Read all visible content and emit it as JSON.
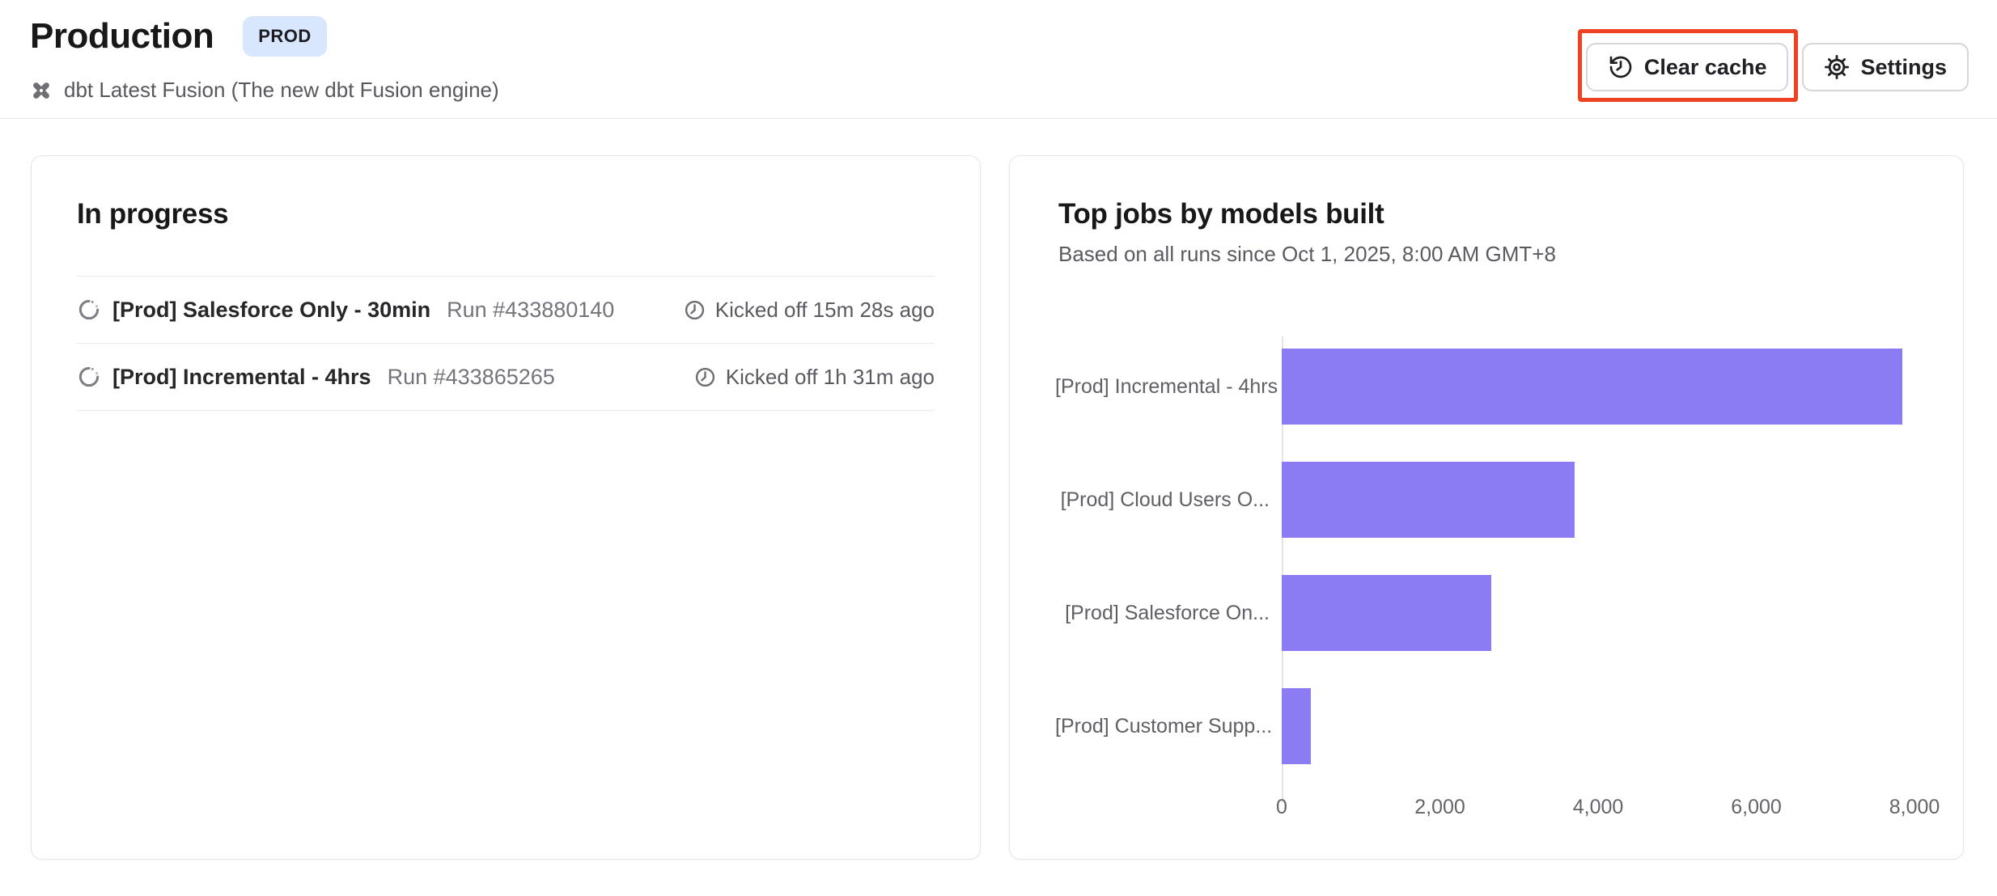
{
  "header": {
    "title": "Production",
    "env_badge": "PROD",
    "engine_label": "dbt Latest Fusion (The new dbt Fusion engine)",
    "actions": {
      "clear_cache": "Clear cache",
      "settings": "Settings"
    }
  },
  "in_progress": {
    "title": "In progress",
    "jobs": [
      {
        "name": "[Prod] Salesforce Only - 30min",
        "run": "Run #433880140",
        "kicked_off": "Kicked off 15m 28s ago"
      },
      {
        "name": "[Prod] Incremental - 4hrs",
        "run": "Run #433865265",
        "kicked_off": "Kicked off 1h 31m ago"
      }
    ]
  },
  "chart_card": {
    "title": "Top jobs by models built",
    "subtitle": "Based on all runs since Oct 1, 2025, 8:00 AM GMT+8"
  },
  "chart_data": {
    "type": "bar",
    "orientation": "horizontal",
    "title": "Top jobs by models built",
    "categories": [
      "[Prod] Incremental - 4hrs",
      "[Prod] Cloud Users O...",
      "[Prod] Salesforce On...",
      "[Prod] Customer Supp..."
    ],
    "values": [
      7850,
      3700,
      2650,
      370
    ],
    "xlim": [
      0,
      8000
    ],
    "xticks": [
      "0",
      "2,000",
      "4,000",
      "6,000",
      "8,000"
    ],
    "xlabel": "",
    "ylabel": "",
    "grid": false,
    "legend": false,
    "bar_color": "#8b7cf3"
  },
  "colors": {
    "accent_annotation_red": "#ef4223",
    "bar_purple": "#8b7cf3",
    "badge_blue_bg": "#d8e7fd"
  },
  "icons": {
    "dbt_logo": "dbt-logo-icon",
    "spinner": "spinner-icon",
    "clock": "clock-icon",
    "history": "history-icon",
    "gear": "gear-icon"
  }
}
